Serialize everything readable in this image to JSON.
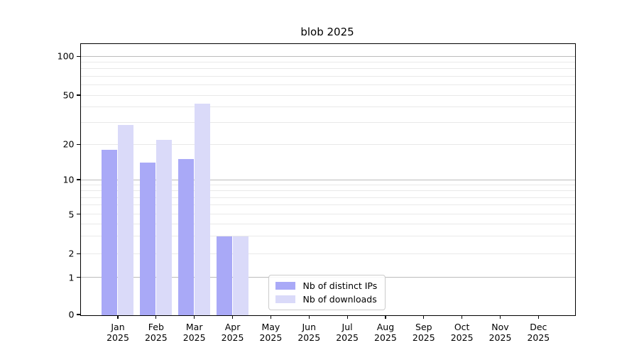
{
  "chart_data": {
    "type": "bar",
    "title": "blob 2025",
    "categories": [
      "Jan 2025",
      "Feb 2025",
      "Mar 2025",
      "Apr 2025",
      "May 2025",
      "Jun 2025",
      "Jul 2025",
      "Aug 2025",
      "Sep 2025",
      "Oct 2025",
      "Nov 2025",
      "Dec 2025"
    ],
    "series": [
      {
        "name": "Nb of distinct IPs",
        "color": "#a9a9f7",
        "values": [
          18,
          14,
          15,
          3,
          null,
          null,
          null,
          null,
          null,
          null,
          null,
          null
        ]
      },
      {
        "name": "Nb of downloads",
        "color": "#dadaf9",
        "values": [
          29,
          22,
          43,
          3,
          null,
          null,
          null,
          null,
          null,
          null,
          null,
          null
        ]
      }
    ],
    "xlabel": "",
    "ylabel": "",
    "yscale": "symlog",
    "y_ticks": [
      0,
      1,
      2,
      5,
      10,
      20,
      50,
      100
    ],
    "ylim": [
      0,
      125
    ],
    "grid": true,
    "legend_position": "lower-center-inside",
    "axis_color": "#000000",
    "major_grid_color": "#bcbcbc",
    "minor_grid_color": "#e9e9e9"
  }
}
